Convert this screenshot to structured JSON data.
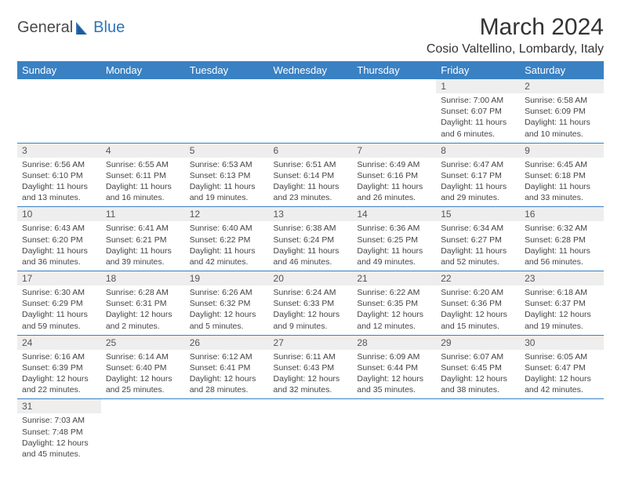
{
  "brand": {
    "text1": "General",
    "text2": "Blue"
  },
  "title": "March 2024",
  "location": "Cosio Valtellino, Lombardy, Italy",
  "colors": {
    "header_bg": "#3a81c3",
    "header_fg": "#ffffff",
    "daynum_bg": "#eeeeee",
    "row_border": "#3a81c3",
    "brand_blue": "#2e75b6"
  },
  "weekdays": [
    "Sunday",
    "Monday",
    "Tuesday",
    "Wednesday",
    "Thursday",
    "Friday",
    "Saturday"
  ],
  "weeks": [
    [
      null,
      null,
      null,
      null,
      null,
      {
        "n": "1",
        "sr": "Sunrise: 7:00 AM",
        "ss": "Sunset: 6:07 PM",
        "dl": "Daylight: 11 hours and 6 minutes."
      },
      {
        "n": "2",
        "sr": "Sunrise: 6:58 AM",
        "ss": "Sunset: 6:09 PM",
        "dl": "Daylight: 11 hours and 10 minutes."
      }
    ],
    [
      {
        "n": "3",
        "sr": "Sunrise: 6:56 AM",
        "ss": "Sunset: 6:10 PM",
        "dl": "Daylight: 11 hours and 13 minutes."
      },
      {
        "n": "4",
        "sr": "Sunrise: 6:55 AM",
        "ss": "Sunset: 6:11 PM",
        "dl": "Daylight: 11 hours and 16 minutes."
      },
      {
        "n": "5",
        "sr": "Sunrise: 6:53 AM",
        "ss": "Sunset: 6:13 PM",
        "dl": "Daylight: 11 hours and 19 minutes."
      },
      {
        "n": "6",
        "sr": "Sunrise: 6:51 AM",
        "ss": "Sunset: 6:14 PM",
        "dl": "Daylight: 11 hours and 23 minutes."
      },
      {
        "n": "7",
        "sr": "Sunrise: 6:49 AM",
        "ss": "Sunset: 6:16 PM",
        "dl": "Daylight: 11 hours and 26 minutes."
      },
      {
        "n": "8",
        "sr": "Sunrise: 6:47 AM",
        "ss": "Sunset: 6:17 PM",
        "dl": "Daylight: 11 hours and 29 minutes."
      },
      {
        "n": "9",
        "sr": "Sunrise: 6:45 AM",
        "ss": "Sunset: 6:18 PM",
        "dl": "Daylight: 11 hours and 33 minutes."
      }
    ],
    [
      {
        "n": "10",
        "sr": "Sunrise: 6:43 AM",
        "ss": "Sunset: 6:20 PM",
        "dl": "Daylight: 11 hours and 36 minutes."
      },
      {
        "n": "11",
        "sr": "Sunrise: 6:41 AM",
        "ss": "Sunset: 6:21 PM",
        "dl": "Daylight: 11 hours and 39 minutes."
      },
      {
        "n": "12",
        "sr": "Sunrise: 6:40 AM",
        "ss": "Sunset: 6:22 PM",
        "dl": "Daylight: 11 hours and 42 minutes."
      },
      {
        "n": "13",
        "sr": "Sunrise: 6:38 AM",
        "ss": "Sunset: 6:24 PM",
        "dl": "Daylight: 11 hours and 46 minutes."
      },
      {
        "n": "14",
        "sr": "Sunrise: 6:36 AM",
        "ss": "Sunset: 6:25 PM",
        "dl": "Daylight: 11 hours and 49 minutes."
      },
      {
        "n": "15",
        "sr": "Sunrise: 6:34 AM",
        "ss": "Sunset: 6:27 PM",
        "dl": "Daylight: 11 hours and 52 minutes."
      },
      {
        "n": "16",
        "sr": "Sunrise: 6:32 AM",
        "ss": "Sunset: 6:28 PM",
        "dl": "Daylight: 11 hours and 56 minutes."
      }
    ],
    [
      {
        "n": "17",
        "sr": "Sunrise: 6:30 AM",
        "ss": "Sunset: 6:29 PM",
        "dl": "Daylight: 11 hours and 59 minutes."
      },
      {
        "n": "18",
        "sr": "Sunrise: 6:28 AM",
        "ss": "Sunset: 6:31 PM",
        "dl": "Daylight: 12 hours and 2 minutes."
      },
      {
        "n": "19",
        "sr": "Sunrise: 6:26 AM",
        "ss": "Sunset: 6:32 PM",
        "dl": "Daylight: 12 hours and 5 minutes."
      },
      {
        "n": "20",
        "sr": "Sunrise: 6:24 AM",
        "ss": "Sunset: 6:33 PM",
        "dl": "Daylight: 12 hours and 9 minutes."
      },
      {
        "n": "21",
        "sr": "Sunrise: 6:22 AM",
        "ss": "Sunset: 6:35 PM",
        "dl": "Daylight: 12 hours and 12 minutes."
      },
      {
        "n": "22",
        "sr": "Sunrise: 6:20 AM",
        "ss": "Sunset: 6:36 PM",
        "dl": "Daylight: 12 hours and 15 minutes."
      },
      {
        "n": "23",
        "sr": "Sunrise: 6:18 AM",
        "ss": "Sunset: 6:37 PM",
        "dl": "Daylight: 12 hours and 19 minutes."
      }
    ],
    [
      {
        "n": "24",
        "sr": "Sunrise: 6:16 AM",
        "ss": "Sunset: 6:39 PM",
        "dl": "Daylight: 12 hours and 22 minutes."
      },
      {
        "n": "25",
        "sr": "Sunrise: 6:14 AM",
        "ss": "Sunset: 6:40 PM",
        "dl": "Daylight: 12 hours and 25 minutes."
      },
      {
        "n": "26",
        "sr": "Sunrise: 6:12 AM",
        "ss": "Sunset: 6:41 PM",
        "dl": "Daylight: 12 hours and 28 minutes."
      },
      {
        "n": "27",
        "sr": "Sunrise: 6:11 AM",
        "ss": "Sunset: 6:43 PM",
        "dl": "Daylight: 12 hours and 32 minutes."
      },
      {
        "n": "28",
        "sr": "Sunrise: 6:09 AM",
        "ss": "Sunset: 6:44 PM",
        "dl": "Daylight: 12 hours and 35 minutes."
      },
      {
        "n": "29",
        "sr": "Sunrise: 6:07 AM",
        "ss": "Sunset: 6:45 PM",
        "dl": "Daylight: 12 hours and 38 minutes."
      },
      {
        "n": "30",
        "sr": "Sunrise: 6:05 AM",
        "ss": "Sunset: 6:47 PM",
        "dl": "Daylight: 12 hours and 42 minutes."
      }
    ],
    [
      {
        "n": "31",
        "sr": "Sunrise: 7:03 AM",
        "ss": "Sunset: 7:48 PM",
        "dl": "Daylight: 12 hours and 45 minutes."
      },
      null,
      null,
      null,
      null,
      null,
      null
    ]
  ]
}
